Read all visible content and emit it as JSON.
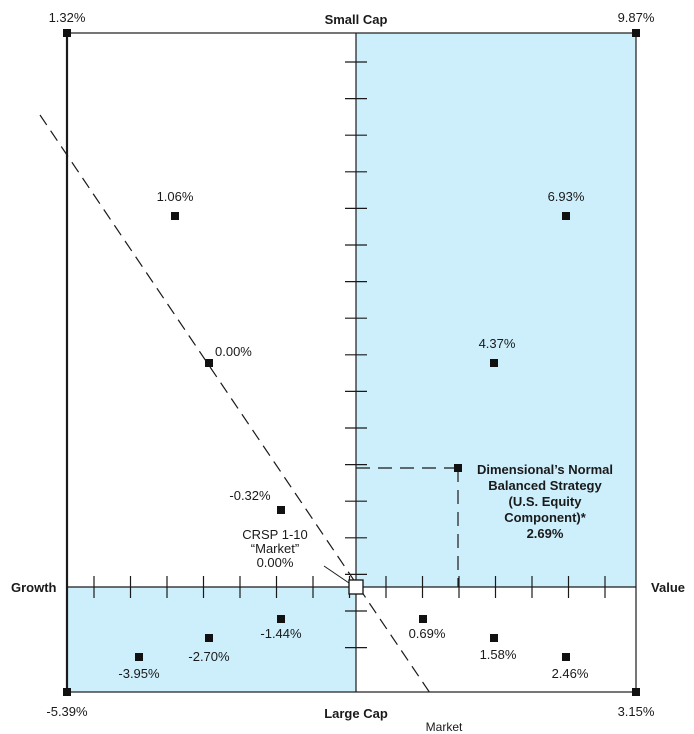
{
  "chart_data": {
    "type": "scatter",
    "axes": {
      "top": "Small Cap",
      "bottom": "Large Cap",
      "left": "Growth",
      "right": "Value"
    },
    "corners": {
      "top_left": "1.32%",
      "top_right": "9.87%",
      "bottom_left": "-5.39%",
      "bottom_right": "3.15%"
    },
    "points": [
      {
        "label": "1.06%",
        "value": 1.06
      },
      {
        "label": "6.93%",
        "value": 6.93
      },
      {
        "label": "0.00%",
        "value": 0.0
      },
      {
        "label": "4.37%",
        "value": 4.37
      },
      {
        "label": "-0.32%",
        "value": -0.32
      },
      {
        "label": "0.69%",
        "value": 0.69
      },
      {
        "label": "-1.44%",
        "value": -1.44
      },
      {
        "label": "1.58%",
        "value": 1.58
      },
      {
        "label": "-2.70%",
        "value": -2.7
      },
      {
        "label": "2.46%",
        "value": 2.46
      },
      {
        "label": "-3.95%",
        "value": -3.95
      }
    ],
    "market": {
      "lines": [
        "CRSP 1-10",
        "“Market”",
        "0.00%"
      ],
      "value": 0.0,
      "line_label": "Market"
    },
    "strategy": {
      "lines": [
        "Dimensional’s Normal",
        "Balanced Strategy",
        "(U.S. Equity",
        "Component)*",
        "2.69%"
      ],
      "value": 2.69
    },
    "shading_color": "#cdeefb",
    "grid": false
  }
}
